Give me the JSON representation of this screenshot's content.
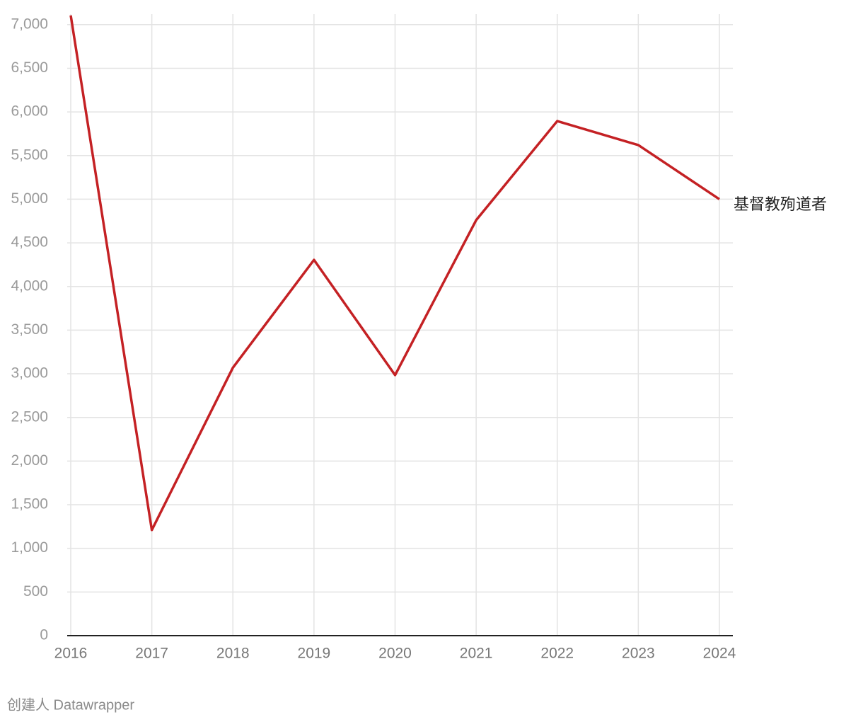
{
  "chart_data": {
    "type": "line",
    "categories": [
      "2016",
      "2017",
      "2018",
      "2019",
      "2020",
      "2021",
      "2022",
      "2023",
      "2024"
    ],
    "series": [
      {
        "name": "基督教殉道者",
        "color": "#c42124",
        "values": [
          7106,
          1210,
          3070,
          4305,
          2985,
          4760,
          5895,
          5620,
          5000
        ]
      }
    ],
    "ylim": [
      0,
      7120
    ],
    "yticks": [
      0,
      500,
      {
        "value": 1000,
        "label": "1,000"
      },
      {
        "value": 1500,
        "label": "1,500"
      },
      {
        "value": 2000,
        "label": "2,000"
      },
      {
        "value": 2500,
        "label": "2,500"
      },
      {
        "value": 3000,
        "label": "3,000"
      },
      {
        "value": 3500,
        "label": "3,500"
      },
      {
        "value": 4000,
        "label": "4,000"
      },
      {
        "value": 4500,
        "label": "4,500"
      },
      {
        "value": 5000,
        "label": "5,000"
      },
      {
        "value": 5500,
        "label": "5,500"
      },
      {
        "value": 6000,
        "label": "6,000"
      },
      {
        "value": 6500,
        "label": "6,500"
      },
      {
        "value": 7000,
        "label": "7,000"
      }
    ],
    "grid": true,
    "footer": "创建人 Datawrapper"
  }
}
